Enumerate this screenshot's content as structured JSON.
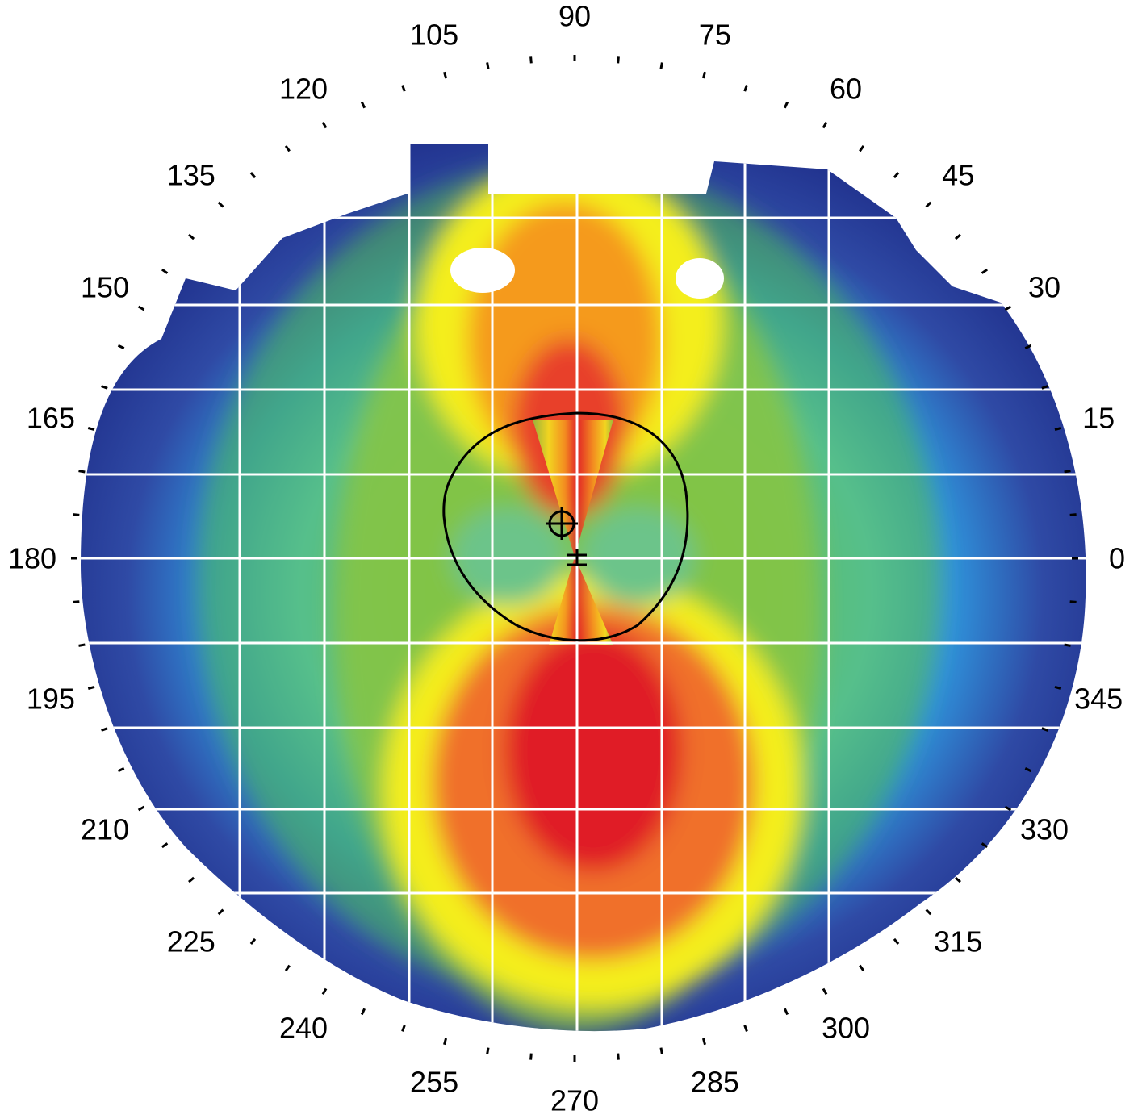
{
  "map": {
    "type": "corneal-topography-axial-map",
    "scale_colors": [
      "#1c2a86",
      "#2f4aa5",
      "#2f8fd8",
      "#5ec8d8",
      "#6cc48a",
      "#4fb84a",
      "#8cc63f",
      "#c8dd2e",
      "#f4ee1e",
      "#f7c41a",
      "#f59a1e",
      "#f0702a",
      "#e8402a",
      "#e01e26"
    ],
    "outline_color": "#000000",
    "grid_color": "#ffffff",
    "background": "#ffffff"
  },
  "angle_labels": [
    {
      "deg": 0,
      "text": "0"
    },
    {
      "deg": 15,
      "text": "15"
    },
    {
      "deg": 30,
      "text": "30"
    },
    {
      "deg": 45,
      "text": "45"
    },
    {
      "deg": 60,
      "text": "60"
    },
    {
      "deg": 75,
      "text": "75"
    },
    {
      "deg": 90,
      "text": "90"
    },
    {
      "deg": 105,
      "text": "105"
    },
    {
      "deg": 120,
      "text": "120"
    },
    {
      "deg": 135,
      "text": "135"
    },
    {
      "deg": 150,
      "text": "150"
    },
    {
      "deg": 165,
      "text": "165"
    },
    {
      "deg": 180,
      "text": "180"
    },
    {
      "deg": 195,
      "text": "195"
    },
    {
      "deg": 210,
      "text": "210"
    },
    {
      "deg": 225,
      "text": "225"
    },
    {
      "deg": 240,
      "text": "240"
    },
    {
      "deg": 255,
      "text": "255"
    },
    {
      "deg": 270,
      "text": "270"
    },
    {
      "deg": 285,
      "text": "285"
    },
    {
      "deg": 300,
      "text": "300"
    },
    {
      "deg": 315,
      "text": "315"
    },
    {
      "deg": 330,
      "text": "330"
    },
    {
      "deg": 345,
      "text": "345"
    }
  ]
}
